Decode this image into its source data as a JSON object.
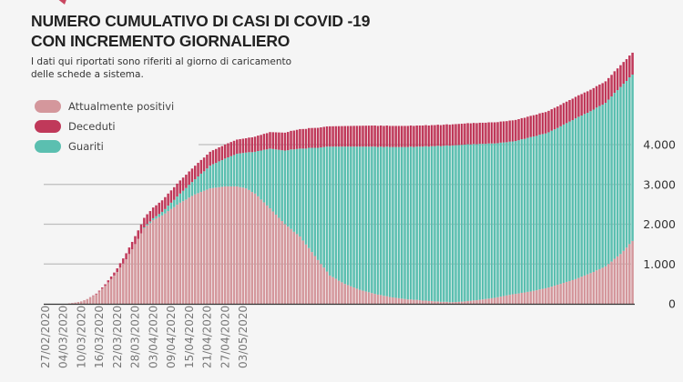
{
  "header": {
    "title_line1": "NUMERO CUMULATIVO DI CASI DI COVID -19",
    "title_line2": "CON INCREMENTO GIORNALIERO",
    "subtitle_line1": "I dati qui riportati sono riferiti al giorno di caricamento",
    "subtitle_line2": "delle schede a sistema."
  },
  "colors": {
    "positivi": "#d4979c",
    "deceduti": "#c0395a",
    "guariti": "#5bbfb0",
    "accent": "#c94660"
  },
  "chart_data": {
    "type": "bar",
    "stacked": true,
    "legend_position": "top-left",
    "grid": true,
    "ylim": [
      0,
      6400
    ],
    "y_ticks": [
      0,
      1000,
      2000,
      3000,
      4000
    ],
    "y_tick_labels": [
      "0",
      "1.000",
      "2.000",
      "3.000",
      "4.000"
    ],
    "x_tick_labels": [
      "27/02/2020",
      "04/03/2020",
      "10/03/2020",
      "16/03/2020",
      "22/03/2020",
      "28/03/2020",
      "03/04/2020",
      "09/04/2020",
      "15/04/2020",
      "21/04/2020",
      "27/04/2020",
      "03/05/2020"
    ],
    "series": [
      {
        "name": "Attualmente positivi",
        "color": "#d4979c",
        "values": [
          0,
          0,
          0,
          0,
          0,
          0,
          0,
          0,
          10,
          20,
          30,
          45,
          60,
          90,
          120,
          160,
          200,
          240,
          310,
          380,
          450,
          540,
          620,
          710,
          800,
          910,
          1010,
          1120,
          1250,
          1370,
          1500,
          1630,
          1770,
          1900,
          1970,
          2030,
          2100,
          2140,
          2180,
          2220,
          2270,
          2330,
          2380,
          2430,
          2490,
          2540,
          2580,
          2620,
          2670,
          2710,
          2750,
          2780,
          2810,
          2840,
          2870,
          2900,
          2910,
          2920,
          2930,
          2940,
          2950,
          2950,
          2950,
          2950,
          2950,
          2930,
          2920,
          2900,
          2860,
          2810,
          2770,
          2700,
          2620,
          2550,
          2470,
          2400,
          2320,
          2240,
          2160,
          2080,
          2000,
          1940,
          1880,
          1810,
          1750,
          1690,
          1590,
          1490,
          1400,
          1300,
          1200,
          1100,
          1000,
          910,
          810,
          710,
          670,
          630,
          580,
          540,
          500,
          470,
          440,
          410,
          380,
          350,
          330,
          310,
          290,
          270,
          250,
          230,
          220,
          200,
          190,
          170,
          160,
          150,
          140,
          130,
          120,
          110,
          110,
          100,
          100,
          90,
          80,
          80,
          70,
          70,
          60,
          60,
          50,
          50,
          50,
          40,
          40,
          45,
          50,
          55,
          60,
          70,
          75,
          85,
          90,
          100,
          110,
          120,
          130,
          140,
          150,
          165,
          180,
          195,
          210,
          225,
          240,
          250,
          260,
          275,
          285,
          300,
          310,
          325,
          340,
          360,
          375,
          390,
          410,
          430,
          455,
          480,
          500,
          525,
          550,
          570,
          595,
          620,
          650,
          680,
          710,
          740,
          770,
          800,
          840,
          870,
          905,
          940,
          1000,
          1060,
          1130,
          1190,
          1250,
          1330,
          1410,
          1500,
          1580
        ]
      },
      {
        "name": "Guariti",
        "color": "#5bbfb0",
        "values": [
          0,
          0,
          0,
          0,
          0,
          0,
          0,
          0,
          0,
          0,
          0,
          0,
          0,
          0,
          0,
          0,
          0,
          0,
          0,
          0,
          0,
          0,
          0,
          0,
          0,
          0,
          0,
          0,
          0,
          0,
          0,
          0,
          0,
          20,
          30,
          40,
          50,
          60,
          75,
          90,
          110,
          135,
          160,
          180,
          205,
          230,
          260,
          290,
          320,
          350,
          380,
          420,
          460,
          490,
          530,
          570,
          600,
          620,
          650,
          670,
          700,
          730,
          760,
          790,
          820,
          850,
          870,
          900,
          950,
          1000,
          1050,
          1140,
          1230,
          1320,
          1410,
          1500,
          1570,
          1640,
          1710,
          1780,
          1850,
          1920,
          2000,
          2070,
          2140,
          2210,
          2310,
          2410,
          2520,
          2620,
          2720,
          2820,
          2930,
          3030,
          3140,
          3240,
          3280,
          3320,
          3370,
          3410,
          3450,
          3480,
          3510,
          3540,
          3570,
          3600,
          3620,
          3640,
          3660,
          3680,
          3700,
          3710,
          3730,
          3740,
          3760,
          3770,
          3780,
          3790,
          3800,
          3810,
          3820,
          3830,
          3840,
          3840,
          3850,
          3860,
          3870,
          3880,
          3880,
          3890,
          3900,
          3910,
          3910,
          3920,
          3930,
          3930,
          3940,
          3940,
          3940,
          3940,
          3940,
          3940,
          3930,
          3930,
          3920,
          3920,
          3910,
          3900,
          3900,
          3890,
          3880,
          3870,
          3870,
          3860,
          3850,
          3850,
          3840,
          3840,
          3850,
          3860,
          3860,
          3870,
          3880,
          3880,
          3880,
          3890,
          3890,
          3890,
          3900,
          3920,
          3930,
          3940,
          3960,
          3980,
          3990,
          4010,
          4020,
          4040,
          4050,
          4050,
          4060,
          4060,
          4070,
          4080,
          4090,
          4100,
          4100,
          4110,
          4130,
          4150,
          4170,
          4180,
          4200,
          4200,
          4190,
          4190,
          4180
        ]
      },
      {
        "name": "Deceduti",
        "color": "#c0395a",
        "values": [
          0,
          0,
          0,
          0,
          0,
          0,
          0,
          0,
          0,
          0,
          0,
          0,
          0,
          0,
          0,
          5,
          10,
          15,
          20,
          30,
          40,
          50,
          65,
          75,
          90,
          110,
          130,
          150,
          165,
          185,
          200,
          215,
          225,
          240,
          250,
          260,
          270,
          275,
          285,
          290,
          300,
          305,
          310,
          320,
          325,
          330,
          332,
          334,
          336,
          338,
          340,
          342,
          344,
          346,
          348,
          350,
          350,
          351,
          352,
          352,
          353,
          354,
          355,
          356,
          357,
          358,
          359,
          360,
          367,
          373,
          380,
          387,
          394,
          401,
          408,
          415,
          422,
          429,
          436,
          443,
          450,
          458,
          466,
          474,
          482,
          490,
          492,
          494,
          496,
          498,
          500,
          502,
          504,
          506,
          508,
          510,
          511,
          513,
          514,
          515,
          517,
          518,
          519,
          521,
          522,
          523,
          525,
          526,
          527,
          529,
          530,
          530,
          530,
          530,
          530,
          530,
          530,
          530,
          530,
          530,
          530,
          530,
          530,
          530,
          530,
          530,
          530,
          530,
          530,
          530,
          530,
          530,
          530,
          530,
          530,
          530,
          530,
          530,
          530,
          530,
          530,
          530,
          530,
          530,
          530,
          530,
          530,
          530,
          530,
          530,
          530,
          530,
          530,
          530,
          530,
          530,
          530,
          530,
          530,
          530,
          530,
          532,
          533,
          534,
          535,
          536,
          537,
          538,
          539,
          540,
          540,
          540,
          540,
          540,
          540,
          540,
          540,
          540,
          540,
          540,
          540,
          540,
          540,
          540,
          540,
          540,
          540,
          541,
          542,
          543,
          544,
          545,
          546,
          547,
          548,
          549,
          550
        ]
      }
    ]
  }
}
